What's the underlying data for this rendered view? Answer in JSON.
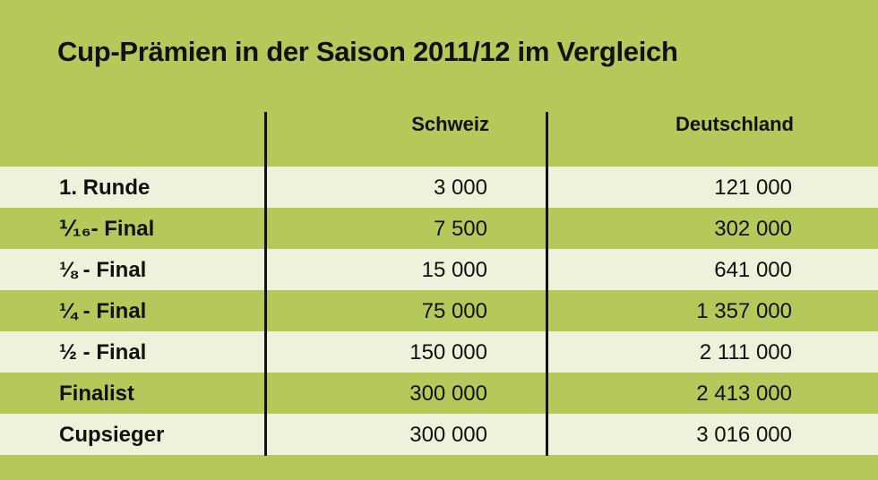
{
  "chart_data": {
    "type": "table",
    "title": "Cup-Prämien in der Saison 2011/12 im Vergleich",
    "columns": [
      "Schweiz",
      "Deutschland"
    ],
    "rows": [
      {
        "label": "1. Runde",
        "schweiz": "3 000",
        "deutschland": "121 000"
      },
      {
        "label": "⅟₁₆- Final",
        "schweiz": "7 500",
        "deutschland": "302 000"
      },
      {
        "label": "⅛ - Final",
        "schweiz": "15 000",
        "deutschland": "641 000"
      },
      {
        "label": "¼ - Final",
        "schweiz": "75 000",
        "deutschland": "1 357 000"
      },
      {
        "label": "½ - Final",
        "schweiz": "150 000",
        "deutschland": "2 111 000"
      },
      {
        "label": "Finalist",
        "schweiz": "300 000",
        "deutschland": "2 413 000"
      },
      {
        "label": "Cupsieger",
        "schweiz": "300 000",
        "deutschland": "3 016 000"
      }
    ]
  },
  "colors": {
    "background": "#b5c95a",
    "row_light": "#eff2db",
    "text": "#111111"
  }
}
